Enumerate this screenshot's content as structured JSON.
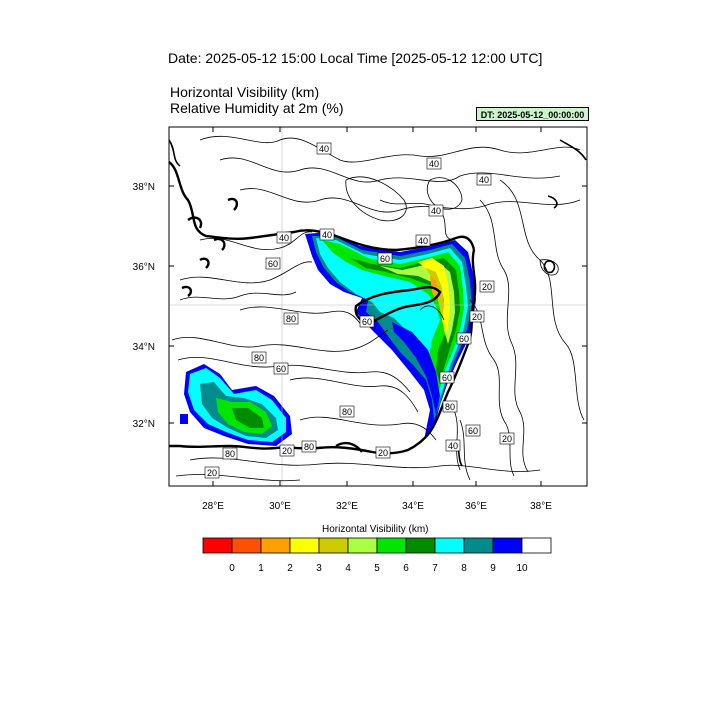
{
  "header": {
    "date_line": "Date: 2025-05-12  15:00 Local Time [2025-05-12  12:00 UTC]",
    "var_line_1": "Horizontal Visibility   (km)",
    "var_line_2": "Relative Humidity at 2m   (%)",
    "dt_badge": "DT: 2025-05-12_00:00:00",
    "dt_badge_color": "#c9f5c9"
  },
  "map": {
    "lat_labels": [
      "38°N",
      "36°N",
      "34°N",
      "32°N"
    ],
    "lon_labels": [
      "28°E",
      "30°E",
      "32°E",
      "34°E",
      "36°E",
      "38°E"
    ],
    "contour_labels": [
      "40",
      "40",
      "40",
      "40",
      "40",
      "40",
      "40",
      "60",
      "60",
      "60",
      "80",
      "80",
      "60",
      "20",
      "20",
      "60",
      "60",
      "80",
      "80",
      "60",
      "20",
      "40",
      "80",
      "80",
      "20",
      "20",
      "20",
      "20"
    ]
  },
  "colorbar": {
    "title": "Horizontal Visibility  (km)",
    "colors": [
      "#ff0000",
      "#ff4f00",
      "#ffa000",
      "#ffff00",
      "#cccc00",
      "#aaff44",
      "#00e600",
      "#008c00",
      "#00ffff",
      "#008c8c",
      "#0000ff",
      "#ffffff"
    ],
    "tick_labels": [
      "0",
      "1",
      "2",
      "3",
      "4",
      "5",
      "6",
      "7",
      "8",
      "9",
      "10"
    ]
  }
}
